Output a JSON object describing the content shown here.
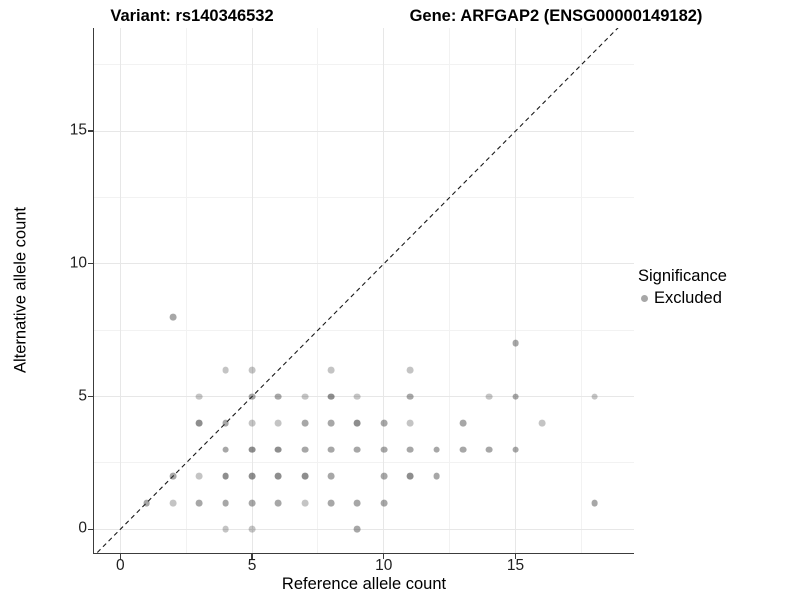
{
  "figure": {
    "title_left": "Variant: rs140346532",
    "title_right": "Gene: ARFGAP2 (ENSG00000149182)"
  },
  "legend": {
    "title": "Significance",
    "position": "right",
    "items": [
      {
        "label": "Excluded",
        "marker": "circle-icon",
        "color": "rgba(60,60,60,0.45)"
      }
    ]
  },
  "colors": {
    "shade_levels": {
      "1": "rgba(60,60,60,0.30)",
      "2": "rgba(60,60,60,0.45)",
      "3": "rgba(60,60,60,0.58)"
    },
    "grid_major": "#e7e7e7",
    "grid_minor": "#f2f2f2",
    "axis_line": "#3c3c3c",
    "tick_text": "#1f1f1f",
    "reference_line": "#1a1a1a"
  },
  "chart_data": {
    "type": "scatter",
    "title": "Variant: rs140346532 / Gene: ARFGAP2 (ENSG00000149182)",
    "xlabel": "Reference allele count",
    "ylabel": "Alternative allele count",
    "xlim": [
      -1,
      19.5
    ],
    "ylim": [
      -0.9,
      18.9
    ],
    "x_ticks": [
      0,
      5,
      10,
      15
    ],
    "y_ticks": [
      0,
      5,
      10,
      15
    ],
    "x_minor_gridlines": [
      2.5,
      7.5,
      12.5,
      17.5
    ],
    "y_minor_gridlines": [
      2.5,
      7.5,
      12.5,
      17.5
    ],
    "grid": "major and minor, light gray on white",
    "legend_position": "right",
    "reference_line": {
      "type": "identity y=x",
      "style": "dashed",
      "color": "#1a1a1a"
    },
    "series": [
      {
        "name": "Excluded",
        "note": "points as [reference_allele_count, alternative_allele_count, shade_level]",
        "points": [
          [
            2,
            8,
            2
          ],
          [
            15,
            7,
            2
          ],
          [
            4,
            6,
            1
          ],
          [
            5,
            6,
            1
          ],
          [
            8,
            6,
            1
          ],
          [
            11,
            6,
            1
          ],
          [
            3,
            5,
            1
          ],
          [
            5,
            5,
            2
          ],
          [
            6,
            5,
            2
          ],
          [
            7,
            5,
            1
          ],
          [
            8,
            5,
            3
          ],
          [
            9,
            5,
            1
          ],
          [
            11,
            5,
            2
          ],
          [
            14,
            5,
            1
          ],
          [
            15,
            5,
            2
          ],
          [
            18,
            5,
            1
          ],
          [
            3,
            4,
            3
          ],
          [
            4,
            4,
            2
          ],
          [
            5,
            4,
            1
          ],
          [
            6,
            4,
            1
          ],
          [
            7,
            4,
            2
          ],
          [
            8,
            4,
            2
          ],
          [
            9,
            4,
            3
          ],
          [
            10,
            4,
            2
          ],
          [
            11,
            4,
            1
          ],
          [
            13,
            4,
            2
          ],
          [
            16,
            4,
            1
          ],
          [
            4,
            3,
            2
          ],
          [
            5,
            3,
            3
          ],
          [
            6,
            3,
            3
          ],
          [
            7,
            3,
            2
          ],
          [
            8,
            3,
            2
          ],
          [
            9,
            3,
            2
          ],
          [
            10,
            3,
            2
          ],
          [
            11,
            3,
            2
          ],
          [
            12,
            3,
            2
          ],
          [
            13,
            3,
            2
          ],
          [
            14,
            3,
            2
          ],
          [
            15,
            3,
            2
          ],
          [
            2,
            2,
            2
          ],
          [
            3,
            2,
            1
          ],
          [
            4,
            2,
            3
          ],
          [
            5,
            2,
            3
          ],
          [
            6,
            2,
            3
          ],
          [
            7,
            2,
            3
          ],
          [
            8,
            2,
            2
          ],
          [
            10,
            2,
            2
          ],
          [
            11,
            2,
            3
          ],
          [
            12,
            2,
            2
          ],
          [
            1,
            1,
            2
          ],
          [
            2,
            1,
            1
          ],
          [
            3,
            1,
            2
          ],
          [
            4,
            1,
            2
          ],
          [
            5,
            1,
            2
          ],
          [
            6,
            1,
            2
          ],
          [
            7,
            1,
            1
          ],
          [
            8,
            1,
            2
          ],
          [
            9,
            1,
            2
          ],
          [
            10,
            1,
            2
          ],
          [
            18,
            1,
            2
          ],
          [
            4,
            0,
            1
          ],
          [
            5,
            0,
            1
          ],
          [
            9,
            0,
            2
          ]
        ]
      }
    ]
  }
}
